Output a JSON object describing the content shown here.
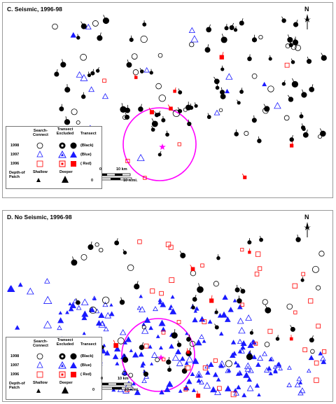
{
  "panels": [
    {
      "id": "c",
      "title": "C. Seismic, 1996-98"
    },
    {
      "id": "d",
      "title": "D. No Seismic, 1996-98"
    }
  ],
  "legend": {
    "col1": [
      "Search-",
      "Connect"
    ],
    "col2": [
      "Transect",
      "Excluded"
    ],
    "col3": "Transect",
    "rows": [
      {
        "year": "1998",
        "color_label": "(Black)",
        "color": "#000000"
      },
      {
        "year": "1997",
        "color_label": "(Blue)",
        "color": "#1a1aff"
      },
      {
        "year": "1996",
        "color_label": "( Red)",
        "color": "#ff0000"
      }
    ],
    "depth_label": [
      "Depth-of",
      "Patch"
    ],
    "shallow": "Shallow",
    "deeper": "Deeper"
  },
  "north": "N",
  "scale": {
    "km_zero": "0",
    "km_label": "10 km",
    "nmi_zero": "0",
    "nmi_label": "10 n.mi."
  },
  "colors": {
    "seismic_circle": "#ff00ff",
    "black": "#000000",
    "blue": "#1a1aff",
    "red": "#ff0000"
  }
}
